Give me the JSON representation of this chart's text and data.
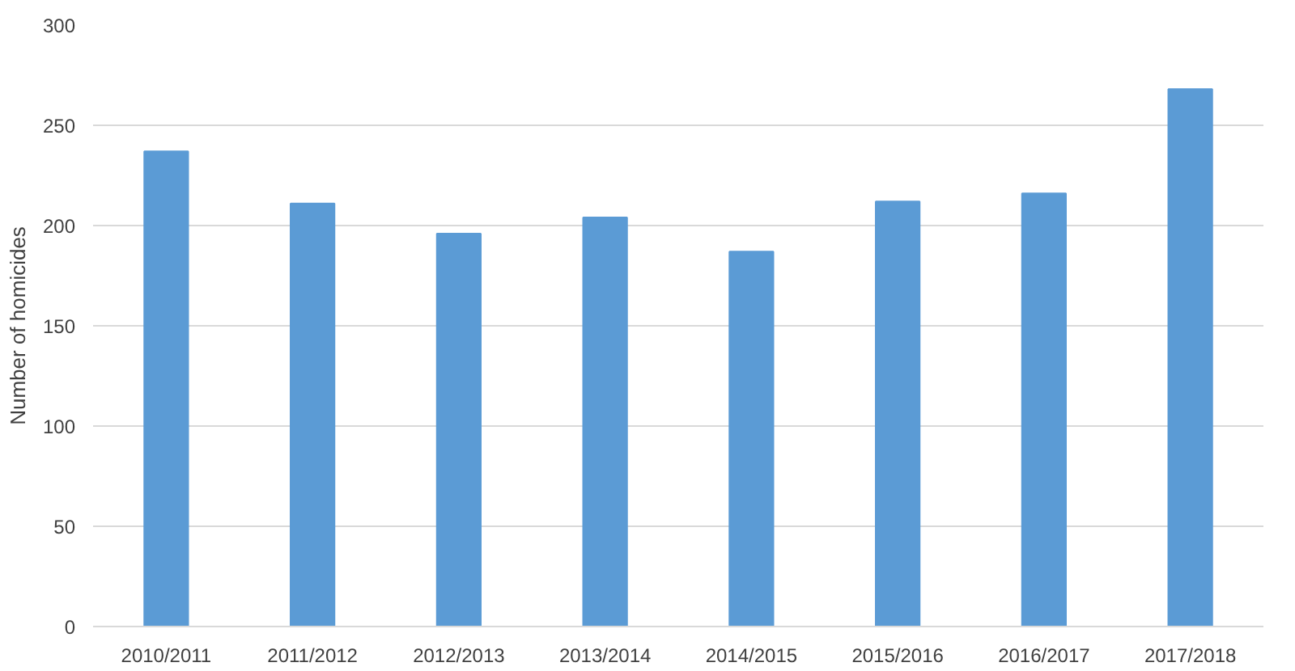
{
  "chart_data": {
    "type": "bar",
    "ylabel": "Number of homicides",
    "categories": [
      "2010/2011",
      "2011/2012",
      "2012/2013",
      "2013/2014",
      "2014/2015",
      "2015/2016",
      "2016/2017",
      "2017/2018"
    ],
    "values": [
      237,
      211,
      196,
      204,
      187,
      212,
      216,
      268
    ],
    "color": "#5b9bd5",
    "ylim": [
      0,
      300
    ],
    "yticks": [
      0,
      50,
      100,
      150,
      200,
      250,
      300
    ],
    "grid": "y"
  }
}
